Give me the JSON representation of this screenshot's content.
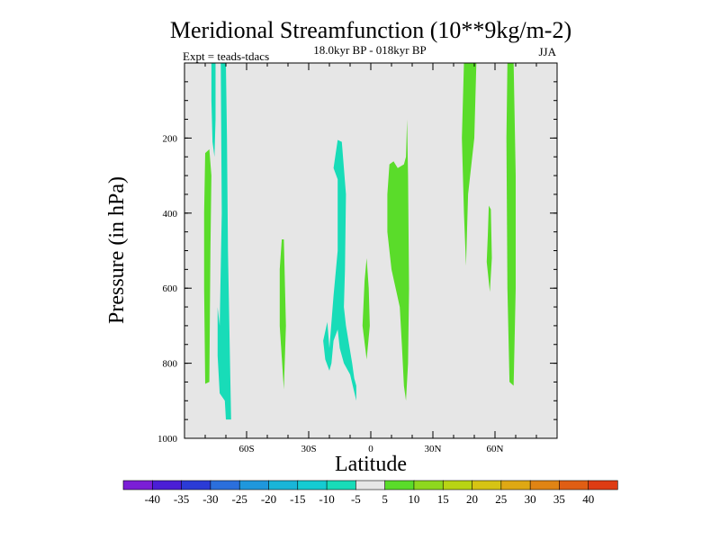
{
  "chart_data": {
    "type": "contour",
    "title": "Meridional Streamfunction (10**9kg/m-2)",
    "subtitle": "18.0kyr BP - 018kyr BP",
    "left_label": "Expt = teads-tdacs",
    "season": "JJA",
    "xlabel": "Latitude",
    "ylabel": "Pressure (in hPa)",
    "xlim": [
      -90,
      90
    ],
    "ylim": [
      1000,
      0
    ],
    "x_ticks": [
      {
        "value": -60,
        "label": "60S"
      },
      {
        "value": -30,
        "label": "30S"
      },
      {
        "value": 0,
        "label": "0"
      },
      {
        "value": 30,
        "label": "30N"
      },
      {
        "value": 60,
        "label": "60N"
      }
    ],
    "y_ticks": [
      {
        "value": 200,
        "label": "200"
      },
      {
        "value": 400,
        "label": "400"
      },
      {
        "value": 600,
        "label": "600"
      },
      {
        "value": 800,
        "label": "800"
      },
      {
        "value": 1000,
        "label": "1000"
      }
    ],
    "background_color": "#e6e6e6",
    "colorbar": {
      "levels": [
        "-40",
        "-35",
        "-30",
        "-25",
        "-20",
        "-15",
        "-10",
        "-5",
        "5",
        "10",
        "15",
        "20",
        "25",
        "30",
        "35",
        "40"
      ],
      "colors": [
        "#7b1ed6",
        "#4b1ed6",
        "#2b3bd6",
        "#2b6fdc",
        "#1f97dc",
        "#19b5d8",
        "#15cbd2",
        "#18dcb8",
        "#e6e6e6",
        "#5adc2a",
        "#8ed81e",
        "#b8d414",
        "#d6c414",
        "#dea814",
        "#e08414",
        "#e05e14",
        "#de3c14"
      ]
    },
    "contour_regions": [
      {
        "name": "neg-region-a",
        "value": -5,
        "color": "#18dcb8",
        "points": [
          [
            -77,
            0
          ],
          [
            -75,
            0
          ],
          [
            -75,
            150
          ],
          [
            -75.5,
            250
          ],
          [
            -76.5,
            210
          ],
          [
            -77,
            100
          ]
        ]
      },
      {
        "name": "pos-region-a",
        "value": 5,
        "color": "#5adc2a",
        "points": [
          [
            -80,
            240
          ],
          [
            -78,
            230
          ],
          [
            -77,
            300
          ],
          [
            -77.5,
            500
          ],
          [
            -78,
            850
          ],
          [
            -80,
            855
          ],
          [
            -80.5,
            600
          ],
          [
            -80.5,
            400
          ]
        ]
      },
      {
        "name": "neg-region-b",
        "value": -5,
        "color": "#18dcb8",
        "points": [
          [
            -72.5,
            0
          ],
          [
            -70,
            0
          ],
          [
            -69.5,
            200
          ],
          [
            -69,
            500
          ],
          [
            -68,
            800
          ],
          [
            -67.5,
            950
          ],
          [
            -70,
            950
          ],
          [
            -70.5,
            900
          ],
          [
            -73,
            880
          ],
          [
            -74,
            780
          ],
          [
            -74,
            650
          ],
          [
            -73,
            700
          ],
          [
            -72,
            400
          ]
        ]
      },
      {
        "name": "pos-region-b",
        "value": 5,
        "color": "#5adc2a",
        "points": [
          [
            -43,
            470
          ],
          [
            -42,
            470
          ],
          [
            -41,
            700
          ],
          [
            -42,
            870
          ],
          [
            -44,
            700
          ],
          [
            -44,
            550
          ]
        ]
      },
      {
        "name": "neg-region-c",
        "value": -5,
        "color": "#18dcb8",
        "points": [
          [
            -16,
            205
          ],
          [
            -14,
            210
          ],
          [
            -12,
            350
          ],
          [
            -12.5,
            550
          ],
          [
            -13,
            650
          ],
          [
            -12,
            700
          ],
          [
            -9,
            800
          ],
          [
            -8,
            840
          ],
          [
            -7,
            860
          ],
          [
            -7,
            900
          ],
          [
            -10,
            830
          ],
          [
            -13,
            800
          ],
          [
            -15,
            760
          ],
          [
            -16,
            710
          ],
          [
            -18,
            740
          ],
          [
            -19,
            800
          ],
          [
            -20,
            820
          ],
          [
            -22,
            790
          ],
          [
            -23,
            740
          ],
          [
            -21,
            690
          ],
          [
            -20,
            760
          ],
          [
            -18,
            620
          ],
          [
            -16,
            500
          ],
          [
            -16,
            310
          ],
          [
            -18,
            280
          ]
        ]
      },
      {
        "name": "pos-region-c",
        "value": 5,
        "color": "#5adc2a",
        "points": [
          [
            -3,
            580
          ],
          [
            -2,
            520
          ],
          [
            -1,
            600
          ],
          [
            -0.5,
            700
          ],
          [
            -2,
            790
          ],
          [
            -4,
            700
          ]
        ]
      },
      {
        "name": "pos-region-d",
        "value": 5,
        "color": "#5adc2a",
        "points": [
          [
            9,
            270
          ],
          [
            11,
            262
          ],
          [
            13,
            280
          ],
          [
            16,
            270
          ],
          [
            17,
            250
          ],
          [
            17.5,
            150
          ],
          [
            18,
            300
          ],
          [
            18.5,
            600
          ],
          [
            18,
            800
          ],
          [
            17,
            900
          ],
          [
            16,
            860
          ],
          [
            15,
            750
          ],
          [
            14,
            650
          ],
          [
            12,
            600
          ],
          [
            10,
            550
          ],
          [
            8,
            450
          ],
          [
            8,
            350
          ]
        ]
      },
      {
        "name": "pos-region-e",
        "value": 5,
        "color": "#5adc2a",
        "points": [
          [
            45,
            0
          ],
          [
            51,
            0
          ],
          [
            50,
            200
          ],
          [
            47,
            350
          ],
          [
            46,
            540
          ],
          [
            45,
            400
          ],
          [
            44,
            200
          ]
        ]
      },
      {
        "name": "pos-region-f",
        "value": 5,
        "color": "#5adc2a",
        "points": [
          [
            57,
            380
          ],
          [
            58,
            390
          ],
          [
            58.5,
            520
          ],
          [
            57.5,
            610
          ],
          [
            56,
            530
          ],
          [
            56.5,
            460
          ]
        ]
      },
      {
        "name": "pos-region-g",
        "value": 5,
        "color": "#5adc2a",
        "points": [
          [
            66,
            0
          ],
          [
            69,
            0
          ],
          [
            70,
            300
          ],
          [
            70,
            600
          ],
          [
            69,
            860
          ],
          [
            67,
            850
          ],
          [
            66,
            600
          ],
          [
            65.5,
            200
          ]
        ]
      }
    ]
  }
}
